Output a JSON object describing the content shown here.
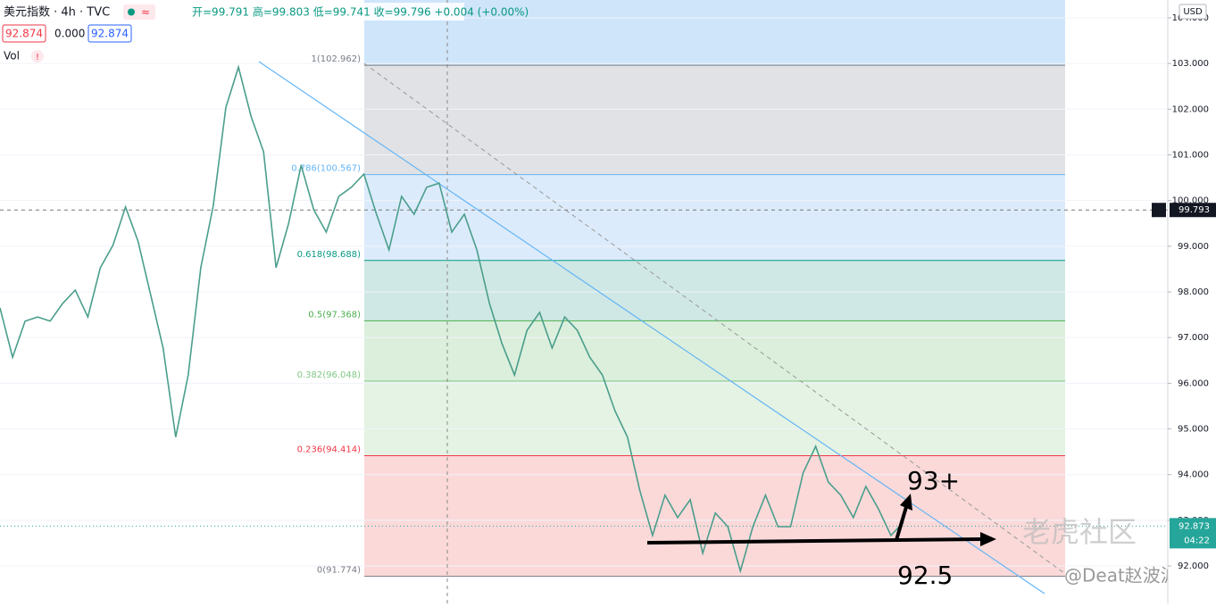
{
  "chart_data": {
    "type": "line",
    "header": {
      "symbol": "美元指数 · 4h · TVC",
      "ohlc": "开=99.791 高=99.803 低=99.741 收=99.796 +0.004 (+0.00%)",
      "sell": "92.874",
      "spread": "0.000",
      "buy": "92.874",
      "volume": "Vol",
      "currency": "USD"
    },
    "series": [
      {
        "name": "美元指数",
        "color": "#4a9e8c",
        "values": [
          97.65,
          96.57,
          97.36,
          97.45,
          97.36,
          97.75,
          98.04,
          97.45,
          98.53,
          99.02,
          99.86,
          99.11,
          97.94,
          96.77,
          94.82,
          96.18,
          98.53,
          99.89,
          102.04,
          102.92,
          101.85,
          101.07,
          98.53,
          99.5,
          100.77,
          99.8,
          99.31,
          100.09,
          100.29,
          100.58,
          99.7,
          98.92,
          100.09,
          99.7,
          100.29,
          100.38,
          99.31,
          99.7,
          98.92,
          97.75,
          96.87,
          96.18,
          97.16,
          97.55,
          96.77,
          97.45,
          97.16,
          96.57,
          96.18,
          95.4,
          94.82,
          93.64,
          92.67,
          93.55,
          93.06,
          93.45,
          92.28,
          93.16,
          92.86,
          91.89,
          92.86,
          93.55,
          92.86,
          92.86,
          94.04,
          94.62,
          93.84,
          93.55,
          93.06,
          93.74,
          93.25,
          92.67,
          92.96
        ]
      }
    ],
    "ylim": [
      91.18,
      104.39
    ],
    "yticks": [
      {
        "value": 92,
        "label": "92.000"
      },
      {
        "value": 93,
        "label": "93.000"
      },
      {
        "value": 94,
        "label": "94.000"
      },
      {
        "value": 95,
        "label": "95.000"
      },
      {
        "value": 96,
        "label": "96.000"
      },
      {
        "value": 97,
        "label": "97.000"
      },
      {
        "value": 98,
        "label": "98.000"
      },
      {
        "value": 99,
        "label": "99.000"
      },
      {
        "value": 100,
        "label": "100.000"
      },
      {
        "value": 101,
        "label": "101.000"
      },
      {
        "value": 102,
        "label": "102.000"
      },
      {
        "value": 103,
        "label": "103.000"
      },
      {
        "value": 104,
        "label": "104.000"
      }
    ],
    "grid": true,
    "fib_levels": [
      {
        "value": 102.962,
        "label": "1(102.962)",
        "color": "#787b86",
        "fill": "#e1e2e5"
      },
      {
        "value": 100.567,
        "label": "0.786(100.567)",
        "color": "#64b5f6",
        "fill": "#dcebfb"
      },
      {
        "value": 98.688,
        "label": "0.618(98.688)",
        "color": "#089981",
        "fill": "#cfe8e5"
      },
      {
        "value": 97.368,
        "label": "0.5(97.368)",
        "color": "#4caf50",
        "fill": "#dbefdc"
      },
      {
        "value": 96.048,
        "label": "0.382(96.048)",
        "color": "#81c784",
        "fill": "#e4f3e3"
      },
      {
        "value": 94.414,
        "label": "0.236(94.414)",
        "color": "#f23645",
        "fill": "#fbd9d9"
      },
      {
        "value": 91.774,
        "label": "0(91.774)",
        "color": "#787b86"
      }
    ],
    "fib_top_fill": "#cfe5fa",
    "crosshair_price": 99.793,
    "last_price": 92.873,
    "countdown": "04:22",
    "annotations": {
      "target": "93+",
      "support": "92.5"
    },
    "watermark": {
      "site": "老虎社区",
      "author": "@Deat赵波波"
    }
  }
}
